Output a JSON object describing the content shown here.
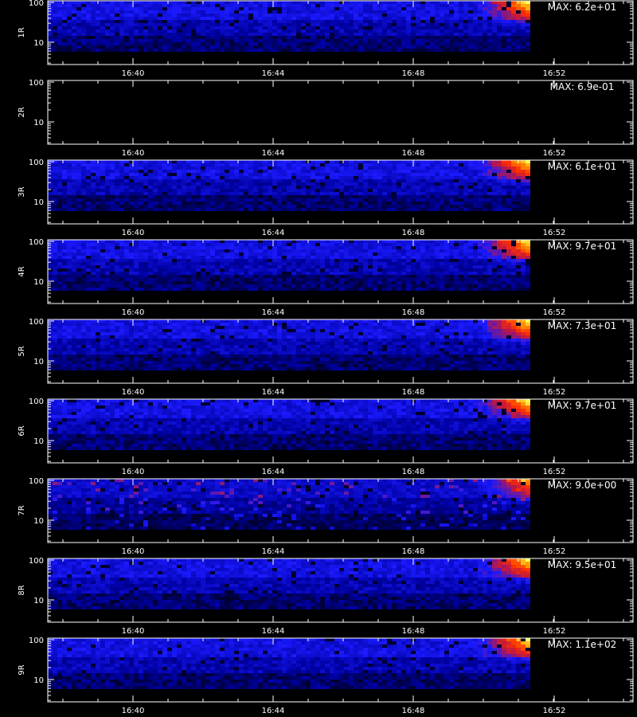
{
  "chart_data": {
    "type": "heatmap",
    "title": "",
    "xlabel": "",
    "x_ticks": [
      "16:40",
      "16:44",
      "16:48",
      "16:52"
    ],
    "y_scale": "log",
    "y_ticks": [
      "10",
      "100"
    ],
    "colormap": [
      "#000000",
      "#0000a0",
      "#1a1aff",
      "#c01840",
      "#ff3000",
      "#ffa000",
      "#ffff60"
    ],
    "panels": [
      {
        "label": "1R",
        "max_label": "MAX: 6.2e+01",
        "max": 62,
        "level": 1.0
      },
      {
        "label": "2R",
        "max_label": "MAX: 6.9e-01",
        "max": 0.69,
        "level": 0.0
      },
      {
        "label": "3R",
        "max_label": "MAX: 6.1e+01",
        "max": 61,
        "level": 1.0
      },
      {
        "label": "4R",
        "max_label": "MAX: 9.7e+01",
        "max": 97,
        "level": 1.0
      },
      {
        "label": "5R",
        "max_label": "MAX: 7.3e+01",
        "max": 73,
        "level": 1.0
      },
      {
        "label": "6R",
        "max_label": "MAX: 9.7e+01",
        "max": 97,
        "level": 1.0
      },
      {
        "label": "7R",
        "max_label": "MAX: 9.0e+00",
        "max": 9.0,
        "level": 0.85
      },
      {
        "label": "8R",
        "max_label": "MAX: 9.5e+01",
        "max": 95,
        "level": 1.0
      },
      {
        "label": "9R",
        "max_label": "MAX: 1.1e+02",
        "max": 110,
        "level": 1.0
      }
    ]
  }
}
